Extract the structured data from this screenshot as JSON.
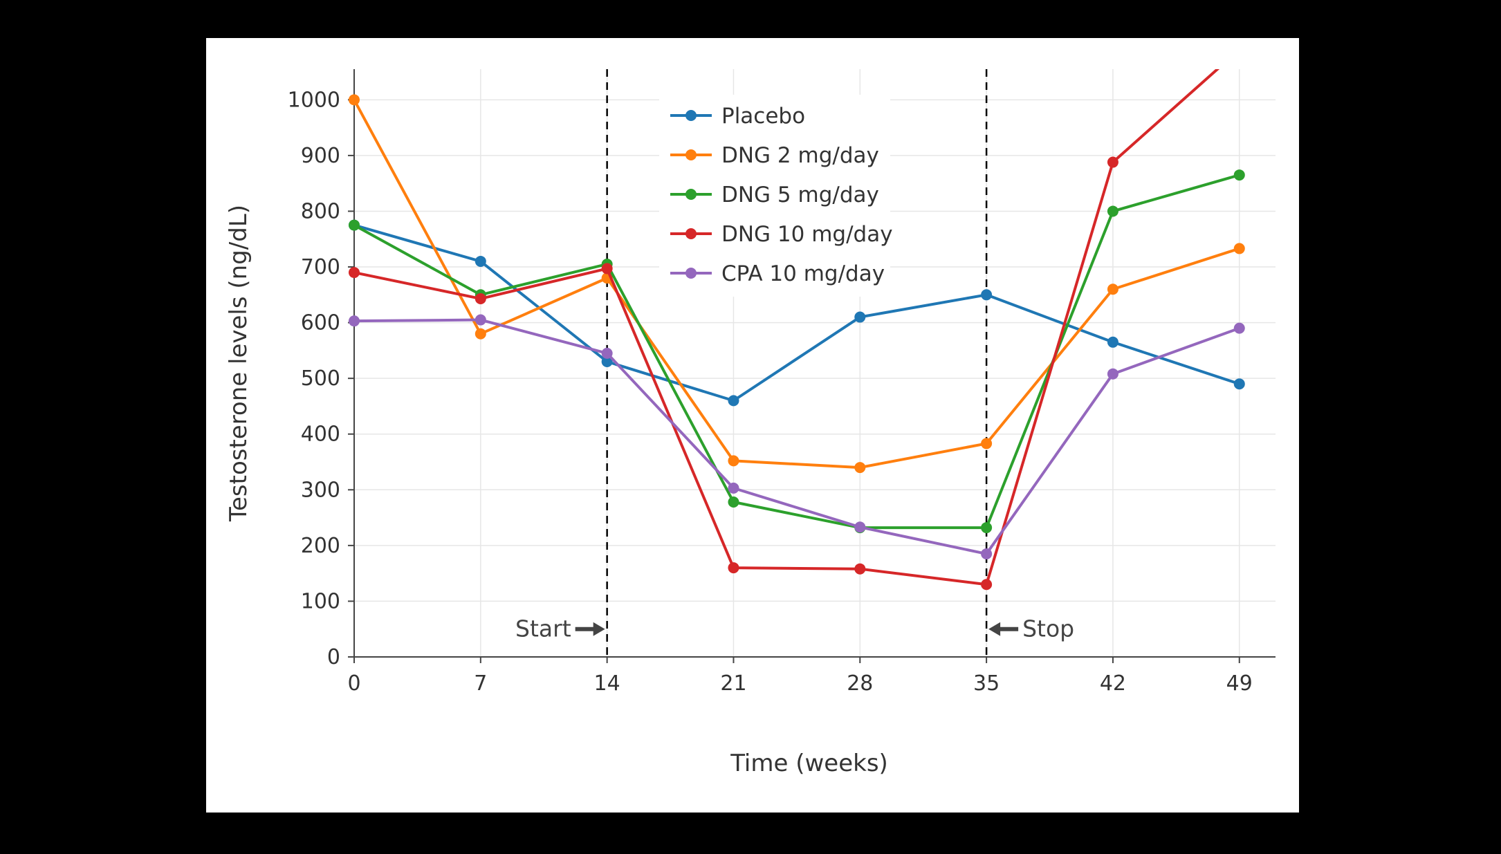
{
  "page": {
    "background_color": "#000000",
    "card_background_color": "#ffffff"
  },
  "chart_data": {
    "type": "line",
    "title": "",
    "xlabel": "Time (weeks)",
    "ylabel": "Testosterone levels (ng/dL)",
    "x": [
      0,
      7,
      14,
      21,
      28,
      35,
      42,
      49
    ],
    "xticks": [
      0,
      7,
      14,
      21,
      28,
      35,
      42,
      49
    ],
    "yticks": [
      0,
      100,
      200,
      300,
      400,
      500,
      600,
      700,
      800,
      900,
      1000
    ],
    "xlim": [
      0,
      51
    ],
    "ylim": [
      0,
      1055
    ],
    "grid": true,
    "legend_position": "inside-top-center",
    "series": [
      {
        "name": "Placebo",
        "color": "#1f77b4",
        "values": [
          775,
          710,
          530,
          460,
          610,
          650,
          565,
          490
        ]
      },
      {
        "name": "DNG 2 mg/day",
        "color": "#ff7f0e",
        "values": [
          1000,
          580,
          680,
          352,
          340,
          383,
          660,
          733
        ]
      },
      {
        "name": "DNG 5 mg/day",
        "color": "#2ca02c",
        "values": [
          775,
          650,
          705,
          278,
          232,
          232,
          800,
          865
        ]
      },
      {
        "name": "DNG 10 mg/day",
        "color": "#d62728",
        "values": [
          690,
          643,
          697,
          160,
          158,
          130,
          888,
          1090
        ]
      },
      {
        "name": "CPA 10 mg/day",
        "color": "#9467bd",
        "values": [
          603,
          605,
          545,
          303,
          233,
          185,
          508,
          590
        ]
      }
    ],
    "vlines": [
      {
        "x": 14,
        "label": "Start",
        "arrow_side": "left"
      },
      {
        "x": 35,
        "label": "Stop",
        "arrow_side": "right"
      }
    ],
    "annotation_y": 50,
    "colors": {
      "text": "#333333",
      "annotation": "#444444",
      "grid": "#e6e6e6",
      "axis": "#444444",
      "vline": "#000000"
    }
  }
}
